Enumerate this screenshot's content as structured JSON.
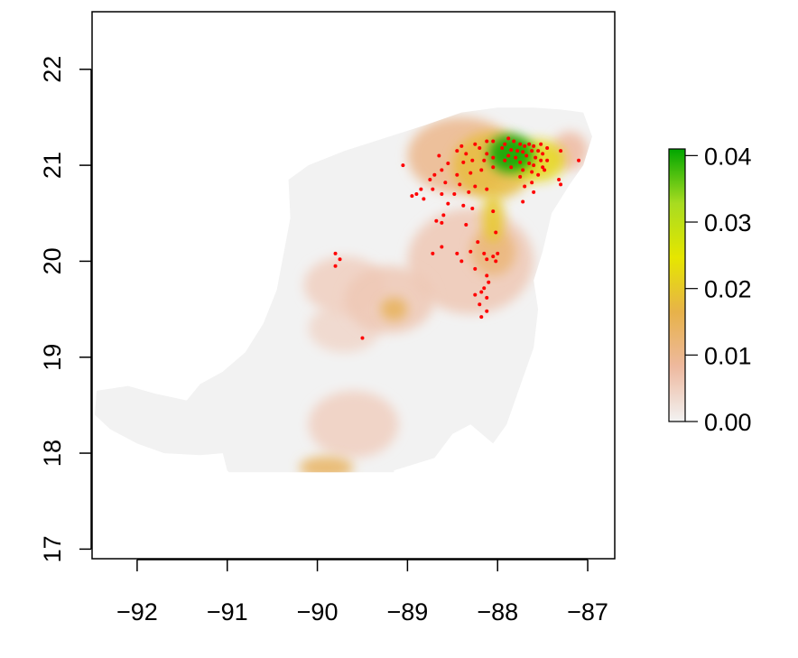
{
  "chart_data": {
    "type": "heatmap",
    "title": "",
    "xlabel": "",
    "ylabel": "",
    "xlim": [
      -92.5,
      -86.7
    ],
    "ylim": [
      16.9,
      22.6
    ],
    "x_ticks": [
      -92,
      -91,
      -90,
      -89,
      -88,
      -87
    ],
    "x_tick_labels": [
      "−92",
      "−91",
      "−90",
      "−89",
      "−88",
      "−87"
    ],
    "y_ticks": [
      17,
      18,
      19,
      20,
      21,
      22
    ],
    "y_tick_labels": [
      "17",
      "18",
      "19",
      "20",
      "21",
      "22"
    ],
    "legend": {
      "placement": "right",
      "min": 0.0,
      "max": 0.041,
      "ticks": [
        0.0,
        0.01,
        0.02,
        0.03,
        0.04
      ],
      "tick_labels": [
        "0.00",
        "0.01",
        "0.02",
        "0.03",
        "0.04"
      ],
      "colors": [
        "#f2f2f2",
        "#eeb99f",
        "#e7b24a",
        "#e6e600",
        "#a8dc20",
        "#00a600"
      ]
    },
    "background_color": "#f2f2f2",
    "point_color": "#ff0000",
    "landmass": [
      [
        -92.45,
        18.65
      ],
      [
        -92.1,
        18.7
      ],
      [
        -91.8,
        18.62
      ],
      [
        -91.45,
        18.55
      ],
      [
        -91.3,
        18.72
      ],
      [
        -91.05,
        18.85
      ],
      [
        -90.8,
        19.05
      ],
      [
        -90.6,
        19.35
      ],
      [
        -90.45,
        19.7
      ],
      [
        -90.38,
        20.05
      ],
      [
        -90.3,
        20.45
      ],
      [
        -90.32,
        20.85
      ],
      [
        -90.1,
        21.0
      ],
      [
        -89.7,
        21.15
      ],
      [
        -89.2,
        21.3
      ],
      [
        -88.8,
        21.42
      ],
      [
        -88.4,
        21.55
      ],
      [
        -88.0,
        21.6
      ],
      [
        -87.6,
        21.6
      ],
      [
        -87.3,
        21.58
      ],
      [
        -87.05,
        21.55
      ],
      [
        -86.95,
        21.3
      ],
      [
        -87.05,
        21.0
      ],
      [
        -87.2,
        20.8
      ],
      [
        -87.4,
        20.5
      ],
      [
        -87.5,
        20.1
      ],
      [
        -87.6,
        19.8
      ],
      [
        -87.55,
        19.5
      ],
      [
        -87.6,
        19.1
      ],
      [
        -87.75,
        18.7
      ],
      [
        -87.9,
        18.3
      ],
      [
        -88.05,
        18.1
      ],
      [
        -88.3,
        18.3
      ],
      [
        -88.5,
        18.2
      ],
      [
        -88.7,
        17.95
      ],
      [
        -89.15,
        17.82
      ],
      [
        -89.15,
        17.8
      ],
      [
        -90.98,
        17.8
      ],
      [
        -91.0,
        17.82
      ],
      [
        -91.05,
        18.0
      ],
      [
        -91.3,
        17.98
      ],
      [
        -91.7,
        18.0
      ],
      [
        -92.0,
        18.1
      ],
      [
        -92.3,
        18.25
      ],
      [
        -92.47,
        18.4
      ]
    ],
    "hotspots": [
      {
        "x": -87.85,
        "y": 21.12,
        "value": 0.041,
        "rx": 0.25,
        "ry": 0.2
      },
      {
        "x": -87.55,
        "y": 21.05,
        "value": 0.022,
        "rx": 0.3,
        "ry": 0.22
      },
      {
        "x": -88.05,
        "y": 21.0,
        "value": 0.018,
        "rx": 0.45,
        "ry": 0.35
      },
      {
        "x": -88.4,
        "y": 21.1,
        "value": 0.01,
        "rx": 0.6,
        "ry": 0.4
      },
      {
        "x": -88.05,
        "y": 20.45,
        "value": 0.02,
        "rx": 0.12,
        "ry": 0.25
      },
      {
        "x": -88.05,
        "y": 20.1,
        "value": 0.012,
        "rx": 0.25,
        "ry": 0.25
      },
      {
        "x": -88.3,
        "y": 20.0,
        "value": 0.006,
        "rx": 0.7,
        "ry": 0.55
      },
      {
        "x": -89.15,
        "y": 19.5,
        "value": 0.015,
        "rx": 0.15,
        "ry": 0.12
      },
      {
        "x": -89.2,
        "y": 19.6,
        "value": 0.006,
        "rx": 0.5,
        "ry": 0.35
      },
      {
        "x": -89.7,
        "y": 19.75,
        "value": 0.005,
        "rx": 0.45,
        "ry": 0.3
      },
      {
        "x": -89.7,
        "y": 19.3,
        "value": 0.004,
        "rx": 0.4,
        "ry": 0.25
      },
      {
        "x": -89.6,
        "y": 18.3,
        "value": 0.005,
        "rx": 0.5,
        "ry": 0.35
      },
      {
        "x": -89.9,
        "y": 17.85,
        "value": 0.014,
        "rx": 0.3,
        "ry": 0.12
      },
      {
        "x": -87.2,
        "y": 21.15,
        "value": 0.008,
        "rx": 0.2,
        "ry": 0.2
      }
    ],
    "points": [
      {
        "x": -87.88,
        "y": 21.28
      },
      {
        "x": -87.82,
        "y": 21.25
      },
      {
        "x": -87.92,
        "y": 21.22
      },
      {
        "x": -87.75,
        "y": 21.22
      },
      {
        "x": -87.7,
        "y": 21.2
      },
      {
        "x": -87.65,
        "y": 21.22
      },
      {
        "x": -87.6,
        "y": 21.2
      },
      {
        "x": -87.52,
        "y": 21.22
      },
      {
        "x": -87.45,
        "y": 21.18
      },
      {
        "x": -87.95,
        "y": 21.18
      },
      {
        "x": -87.85,
        "y": 21.16
      },
      {
        "x": -87.78,
        "y": 21.15
      },
      {
        "x": -87.72,
        "y": 21.14
      },
      {
        "x": -87.62,
        "y": 21.15
      },
      {
        "x": -87.55,
        "y": 21.15
      },
      {
        "x": -87.5,
        "y": 21.12
      },
      {
        "x": -87.88,
        "y": 21.1
      },
      {
        "x": -87.8,
        "y": 21.08
      },
      {
        "x": -87.68,
        "y": 21.1
      },
      {
        "x": -87.58,
        "y": 21.08
      },
      {
        "x": -87.52,
        "y": 21.05
      },
      {
        "x": -87.45,
        "y": 21.05
      },
      {
        "x": -87.92,
        "y": 21.05
      },
      {
        "x": -87.75,
        "y": 21.03
      },
      {
        "x": -87.65,
        "y": 21.02
      },
      {
        "x": -87.6,
        "y": 21.0
      },
      {
        "x": -87.5,
        "y": 20.98
      },
      {
        "x": -87.48,
        "y": 20.95
      },
      {
        "x": -87.85,
        "y": 20.98
      },
      {
        "x": -87.72,
        "y": 20.95
      },
      {
        "x": -87.62,
        "y": 20.93
      },
      {
        "x": -87.55,
        "y": 20.9
      },
      {
        "x": -87.3,
        "y": 21.15
      },
      {
        "x": -87.32,
        "y": 20.85
      },
      {
        "x": -87.3,
        "y": 20.8
      },
      {
        "x": -87.1,
        "y": 21.05
      },
      {
        "x": -87.75,
        "y": 20.88
      },
      {
        "x": -87.62,
        "y": 20.82
      },
      {
        "x": -87.7,
        "y": 20.78
      },
      {
        "x": -87.6,
        "y": 20.72
      },
      {
        "x": -87.72,
        "y": 20.62
      },
      {
        "x": -88.05,
        "y": 21.25
      },
      {
        "x": -88.12,
        "y": 21.25
      },
      {
        "x": -88.25,
        "y": 21.22
      },
      {
        "x": -88.4,
        "y": 21.2
      },
      {
        "x": -88.45,
        "y": 21.15
      },
      {
        "x": -88.35,
        "y": 21.12
      },
      {
        "x": -88.2,
        "y": 21.18
      },
      {
        "x": -88.12,
        "y": 21.12
      },
      {
        "x": -88.05,
        "y": 21.08
      },
      {
        "x": -88.15,
        "y": 21.05
      },
      {
        "x": -88.28,
        "y": 21.05
      },
      {
        "x": -88.38,
        "y": 21.03
      },
      {
        "x": -88.55,
        "y": 21.02
      },
      {
        "x": -88.65,
        "y": 21.1
      },
      {
        "x": -88.05,
        "y": 20.98
      },
      {
        "x": -88.18,
        "y": 20.95
      },
      {
        "x": -88.3,
        "y": 20.92
      },
      {
        "x": -88.45,
        "y": 20.9
      },
      {
        "x": -88.7,
        "y": 20.9
      },
      {
        "x": -88.75,
        "y": 20.85
      },
      {
        "x": -88.58,
        "y": 20.82
      },
      {
        "x": -88.42,
        "y": 20.8
      },
      {
        "x": -88.25,
        "y": 20.78
      },
      {
        "x": -88.12,
        "y": 20.75
      },
      {
        "x": -88.32,
        "y": 20.72
      },
      {
        "x": -88.48,
        "y": 20.7
      },
      {
        "x": -88.62,
        "y": 20.7
      },
      {
        "x": -88.72,
        "y": 20.75
      },
      {
        "x": -88.85,
        "y": 20.75
      },
      {
        "x": -88.9,
        "y": 20.7
      },
      {
        "x": -88.95,
        "y": 20.68
      },
      {
        "x": -88.82,
        "y": 20.65
      },
      {
        "x": -88.55,
        "y": 20.6
      },
      {
        "x": -88.38,
        "y": 20.58
      },
      {
        "x": -88.28,
        "y": 20.55
      },
      {
        "x": -88.6,
        "y": 20.48
      },
      {
        "x": -88.68,
        "y": 20.42
      },
      {
        "x": -88.62,
        "y": 20.4
      },
      {
        "x": -88.35,
        "y": 20.38
      },
      {
        "x": -88.05,
        "y": 20.52
      },
      {
        "x": -88.02,
        "y": 20.3
      },
      {
        "x": -88.22,
        "y": 20.2
      },
      {
        "x": -88.62,
        "y": 20.15
      },
      {
        "x": -88.72,
        "y": 20.08
      },
      {
        "x": -88.45,
        "y": 20.08
      },
      {
        "x": -88.3,
        "y": 20.1
      },
      {
        "x": -88.15,
        "y": 20.08
      },
      {
        "x": -88.05,
        "y": 20.05
      },
      {
        "x": -88.0,
        "y": 20.08
      },
      {
        "x": -88.4,
        "y": 20.0
      },
      {
        "x": -88.12,
        "y": 20.02
      },
      {
        "x": -88.02,
        "y": 20.0
      },
      {
        "x": -88.25,
        "y": 19.92
      },
      {
        "x": -88.12,
        "y": 19.85
      },
      {
        "x": -88.1,
        "y": 19.78
      },
      {
        "x": -88.15,
        "y": 19.72
      },
      {
        "x": -88.18,
        "y": 19.68
      },
      {
        "x": -88.25,
        "y": 19.65
      },
      {
        "x": -88.12,
        "y": 19.62
      },
      {
        "x": -88.2,
        "y": 19.55
      },
      {
        "x": -88.12,
        "y": 19.48
      },
      {
        "x": -88.18,
        "y": 19.42
      },
      {
        "x": -89.05,
        "y": 21.0
      },
      {
        "x": -88.62,
        "y": 20.95
      },
      {
        "x": -89.8,
        "y": 20.08
      },
      {
        "x": -89.75,
        "y": 20.02
      },
      {
        "x": -89.8,
        "y": 19.95
      },
      {
        "x": -89.5,
        "y": 19.2
      }
    ]
  }
}
